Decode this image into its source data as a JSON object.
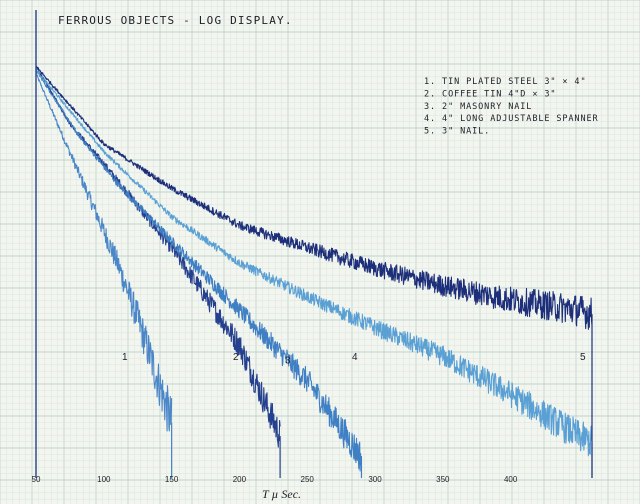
{
  "chart_data": {
    "type": "line",
    "title": "FERROUS OBJECTS - LOG DISPLAY.",
    "xlabel": "T µ Sec.",
    "ylabel": "",
    "x_ticks": [
      "50",
      "100",
      "150",
      "200",
      "250",
      "300",
      "350",
      "400"
    ],
    "xlim": [
      50,
      460
    ],
    "y_scale": "log",
    "ylim": [
      0.001,
      1
    ],
    "grid": true,
    "legend_position": "top-right",
    "legend": [
      {
        "number": "1.",
        "text": "TIN PLATED STEEL",
        "size": "3\" × 4\""
      },
      {
        "number": "2.",
        "text": "COFFEE TIN",
        "size": "4\"D × 3\""
      },
      {
        "number": "3.",
        "text": "2\" MASONRY NAIL",
        "size": ""
      },
      {
        "number": "4.",
        "text": "4\" LONG ADJUSTABLE SPANNER",
        "size": ""
      },
      {
        "number": "5.",
        "text": "3\" NAIL.",
        "size": ""
      }
    ],
    "series": [
      {
        "label": "1",
        "color": "#4b87c8",
        "x": [
          50,
          70,
          90,
          110,
          125,
          140,
          150
        ],
        "y": [
          0.8,
          0.28,
          0.1,
          0.035,
          0.014,
          0.005,
          0.0025
        ]
      },
      {
        "label": "2",
        "color": "#25408e",
        "x": [
          50,
          75,
          100,
          150,
          200,
          230
        ],
        "y": [
          0.9,
          0.35,
          0.18,
          0.045,
          0.009,
          0.002
        ]
      },
      {
        "label": "3",
        "color": "#3f7fc4",
        "x": [
          50,
          80,
          110,
          150,
          200,
          250,
          290
        ],
        "y": [
          0.85,
          0.3,
          0.13,
          0.05,
          0.016,
          0.005,
          0.0014
        ]
      },
      {
        "label": "4",
        "color": "#5aa0d4",
        "x": [
          50,
          100,
          150,
          200,
          250,
          300,
          350,
          400,
          450,
          460
        ],
        "y": [
          0.85,
          0.22,
          0.075,
          0.035,
          0.02,
          0.012,
          0.0075,
          0.004,
          0.002,
          0.0018
        ]
      },
      {
        "label": "5",
        "color": "#1d2f7a",
        "x": [
          50,
          100,
          150,
          200,
          250,
          300,
          350,
          400,
          450,
          460
        ],
        "y": [
          0.9,
          0.25,
          0.12,
          0.065,
          0.045,
          0.032,
          0.024,
          0.019,
          0.016,
          0.015
        ]
      }
    ],
    "curve_labels": [
      "1",
      "2",
      "3",
      "4",
      "5"
    ]
  }
}
